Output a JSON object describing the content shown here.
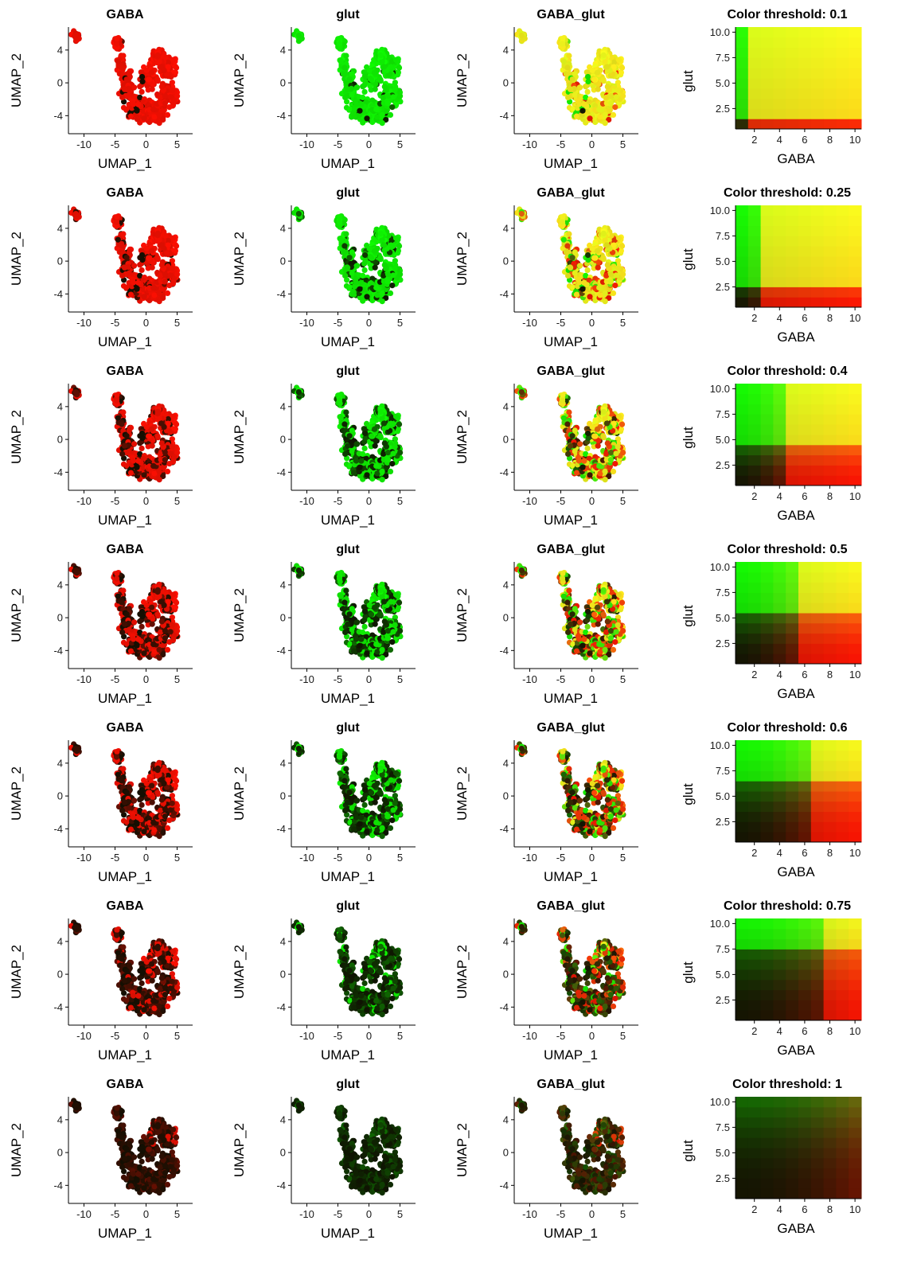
{
  "chart_data": {
    "type": "scatter",
    "description_free": true,
    "panel_titles": {
      "red": "GABA",
      "green": "glut",
      "blend": "GABA_glut"
    },
    "umap_axes": {
      "xlabel": "UMAP_1",
      "ylabel": "UMAP_2",
      "xlim": [
        -12.5,
        7.5
      ],
      "ylim": [
        -6.2,
        6.8
      ],
      "xticks": [
        -10,
        -5,
        0,
        5
      ],
      "yticks": [
        -4,
        0,
        4
      ],
      "xtick_labels": [
        "-10",
        "-5",
        "0",
        "5"
      ],
      "ytick_labels": [
        "-4",
        "0",
        "4"
      ]
    },
    "legend_axes": {
      "xlabel": "GABA",
      "ylabel": "glut",
      "xlim": [
        0.5,
        10.5
      ],
      "ylim": [
        0.5,
        10.5
      ],
      "xticks": [
        2,
        4,
        6,
        8,
        10
      ],
      "yticks": [
        2.5,
        5,
        7.5,
        10
      ],
      "xtick_labels": [
        "2",
        "4",
        "6",
        "8",
        "10"
      ],
      "ytick_labels": [
        "2.5",
        "5.0",
        "7.5",
        "10.0"
      ]
    },
    "rows": [
      {
        "title": "Color threshold: 0.1",
        "threshold": 0.1
      },
      {
        "title": "Color threshold: 0.25",
        "threshold": 0.25
      },
      {
        "title": "Color threshold: 0.4",
        "threshold": 0.4
      },
      {
        "title": "Color threshold: 0.5",
        "threshold": 0.5
      },
      {
        "title": "Color threshold: 0.6",
        "threshold": 0.6
      },
      {
        "title": "Color threshold: 0.75",
        "threshold": 0.75
      },
      {
        "title": "Color threshold: 1",
        "threshold": 1
      }
    ],
    "colors": {
      "gaba": "#ff1a1a",
      "glut": "#1aff1a",
      "both": "#ffff1a",
      "none": "#141414"
    }
  }
}
